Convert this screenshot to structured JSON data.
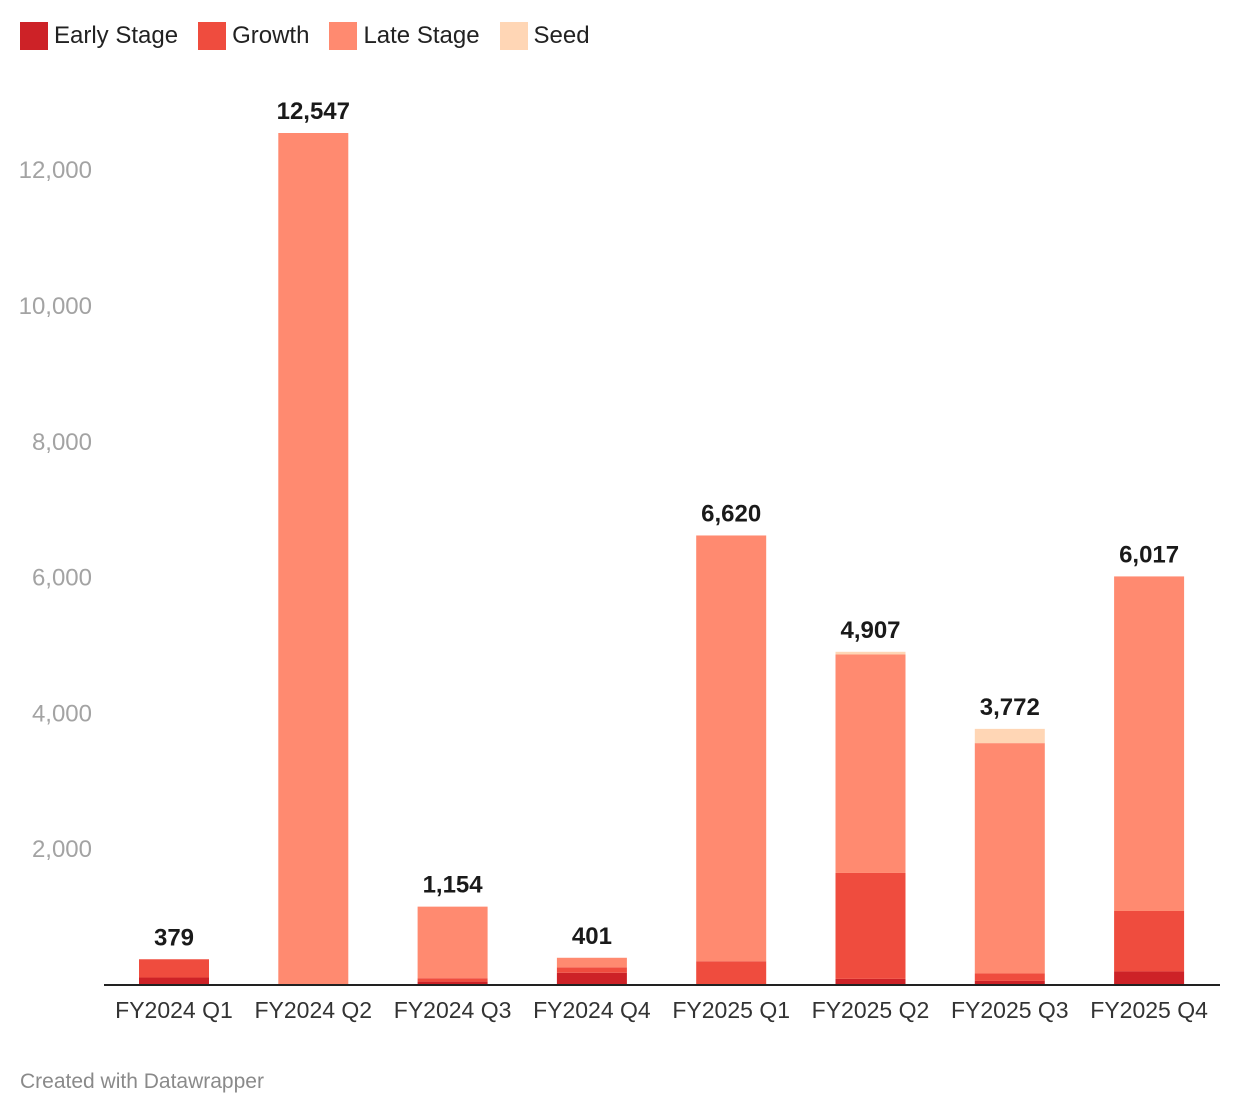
{
  "legend": [
    {
      "label": "Early Stage",
      "color": "#cd2227"
    },
    {
      "label": "Growth",
      "color": "#ef4c3e"
    },
    {
      "label": "Late Stage",
      "color": "#ff8a70"
    },
    {
      "label": "Seed",
      "color": "#ffd6b5"
    }
  ],
  "footer": "Created with Datawrapper",
  "chart_data": {
    "type": "bar",
    "stacked": true,
    "categories": [
      "FY2024 Q1",
      "FY2024 Q2",
      "FY2024 Q3",
      "FY2024 Q4",
      "FY2025 Q1",
      "FY2025 Q2",
      "FY2025 Q3",
      "FY2025 Q4"
    ],
    "series": [
      {
        "name": "Early Stage",
        "color": "#cd2227",
        "values": [
          110,
          0,
          50,
          180,
          0,
          90,
          60,
          200
        ]
      },
      {
        "name": "Growth",
        "color": "#ef4c3e",
        "values": [
          269,
          0,
          50,
          80,
          350,
          1560,
          110,
          890
        ]
      },
      {
        "name": "Late Stage",
        "color": "#ff8a70",
        "values": [
          0,
          12547,
          1054,
          141,
          6270,
          3217,
          3392,
          4927
        ]
      },
      {
        "name": "Seed",
        "color": "#ffd6b5",
        "values": [
          0,
          0,
          0,
          0,
          0,
          40,
          210,
          0
        ]
      }
    ],
    "totals": [
      379,
      12547,
      1154,
      401,
      6620,
      4907,
      3772,
      6017
    ],
    "total_labels": [
      "379",
      "12,547",
      "1,154",
      "401",
      "6,620",
      "4,907",
      "3,772",
      "6,017"
    ],
    "yticks": [
      2000,
      4000,
      6000,
      8000,
      10000,
      12000
    ],
    "ytick_labels": [
      "2,000",
      "4,000",
      "6,000",
      "8,000",
      "10,000",
      "12,000"
    ],
    "ylim": [
      0,
      12547
    ],
    "grid": false,
    "legend_position": "top-left"
  }
}
